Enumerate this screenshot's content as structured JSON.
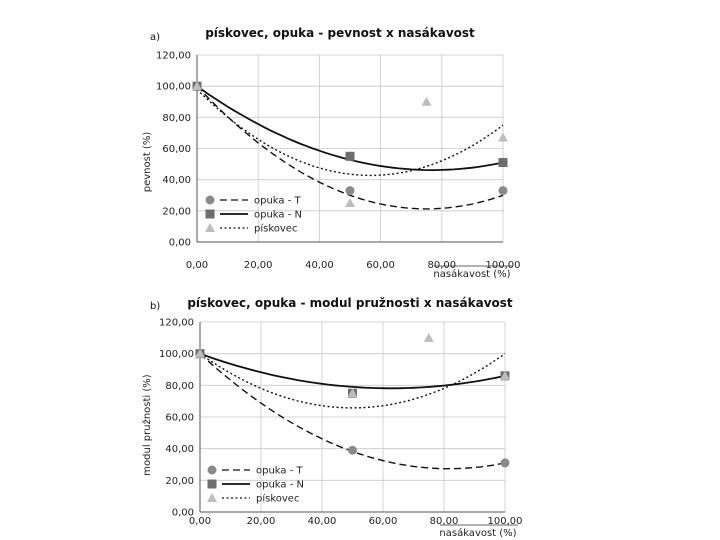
{
  "chart_data": [
    {
      "type": "scatter",
      "panel_label": "a)",
      "title": "pískovec, opuka - pevnost x nasákavost",
      "xlabel": "nasákavost (%)",
      "ylabel": "pevnost (%)",
      "xlim": [
        0,
        100
      ],
      "ylim": [
        0,
        120
      ],
      "xticks": [
        "0,00",
        "20,00",
        "40,00",
        "60,00",
        "80,00",
        "100,00"
      ],
      "yticks": [
        "0,00",
        "20,00",
        "40,00",
        "60,00",
        "80,00",
        "100,00",
        "120,00"
      ],
      "grid": true,
      "legend_position": "bottom-left",
      "series": [
        {
          "name": "opuka - T",
          "marker": "circle",
          "line": "dashed",
          "color": "#8a8a8a",
          "points": [
            {
              "x": 0,
              "y": 100
            },
            {
              "x": 50,
              "y": 33
            },
            {
              "x": 100,
              "y": 33
            }
          ],
          "trend": [
            100,
            -2.1,
            0.014
          ]
        },
        {
          "name": "opuka - N",
          "marker": "square",
          "line": "solid",
          "color": "#6e6e6e",
          "points": [
            {
              "x": 0,
              "y": 100
            },
            {
              "x": 50,
              "y": 55
            },
            {
              "x": 100,
              "y": 51
            }
          ],
          "trend": [
            100,
            -1.4,
            0.0091
          ]
        },
        {
          "name": "pískovec",
          "marker": "triangle",
          "line": "dotted",
          "color": "#bdbdbd",
          "points": [
            {
              "x": 0,
              "y": 100
            },
            {
              "x": 50,
              "y": 25
            },
            {
              "x": 75,
              "y": 90
            },
            {
              "x": 100,
              "y": 67
            }
          ],
          "trend": [
            98,
            -1.95,
            0.0172
          ]
        }
      ]
    },
    {
      "type": "scatter",
      "panel_label": "b)",
      "title": "pískovec, opuka - modul pružnosti x nasákavost",
      "xlabel": "nasákavost (%)",
      "ylabel": "modul pružnosti (%)",
      "xlim": [
        0,
        100
      ],
      "ylim": [
        0,
        120
      ],
      "xticks": [
        "0,00",
        "20,00",
        "40,00",
        "60,00",
        "80,00",
        "100,00"
      ],
      "yticks": [
        "0,00",
        "20,00",
        "40,00",
        "60,00",
        "80,00",
        "100,00",
        "120,00"
      ],
      "grid": true,
      "legend_position": "bottom-left",
      "series": [
        {
          "name": "opuka - T",
          "marker": "circle",
          "line": "dashed",
          "color": "#8a8a8a",
          "points": [
            {
              "x": 0,
              "y": 100
            },
            {
              "x": 50,
              "y": 39
            },
            {
              "x": 100,
              "y": 31
            }
          ],
          "trend": [
            100,
            -1.78,
            0.0109
          ]
        },
        {
          "name": "opuka - N",
          "marker": "square",
          "line": "solid",
          "color": "#6e6e6e",
          "points": [
            {
              "x": 0,
              "y": 100
            },
            {
              "x": 50,
              "y": 75
            },
            {
              "x": 100,
              "y": 86
            }
          ],
          "trend": [
            100,
            -0.7,
            0.0056
          ]
        },
        {
          "name": "pískovec",
          "marker": "triangle",
          "line": "dotted",
          "color": "#bdbdbd",
          "points": [
            {
              "x": 0,
              "y": 100
            },
            {
              "x": 50,
              "y": 75
            },
            {
              "x": 75,
              "y": 110
            },
            {
              "x": 100,
              "y": 86
            }
          ],
          "trend": [
            100,
            -1.37,
            0.0137
          ]
        }
      ]
    }
  ]
}
